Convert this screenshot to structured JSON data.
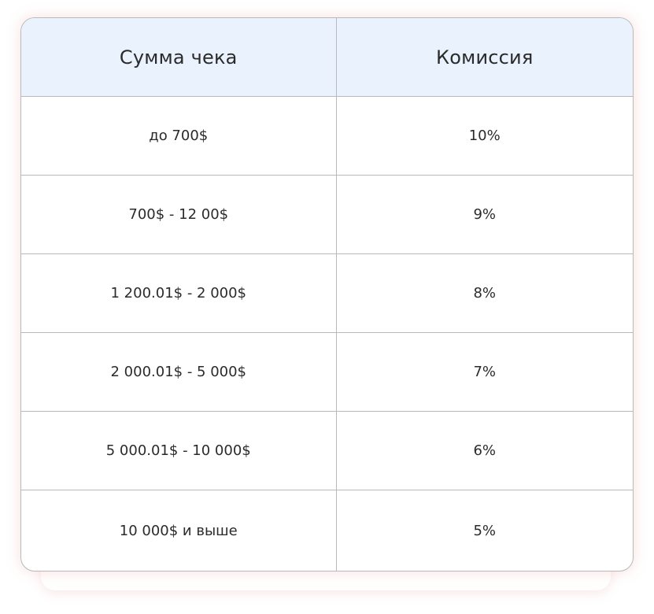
{
  "table": {
    "headers": [
      "Сумма чека",
      "Комиссия"
    ],
    "rows": [
      {
        "amount": "до 700$",
        "commission": "10%"
      },
      {
        "amount": "700$ - 12 00$",
        "commission": "9%"
      },
      {
        "amount": "1 200.01$ - 2 000$",
        "commission": "8%"
      },
      {
        "amount": "2 000.01$ - 5 000$",
        "commission": "7%"
      },
      {
        "amount": "5 000.01$ - 10 000$",
        "commission": "6%"
      },
      {
        "amount": "10 000$ и выше",
        "commission": "5%"
      }
    ]
  },
  "colors": {
    "header_background": "#e9f2fd",
    "border": "#b9b9b9",
    "text": "#2b2b2b",
    "shadow": "#eb8c8c"
  }
}
